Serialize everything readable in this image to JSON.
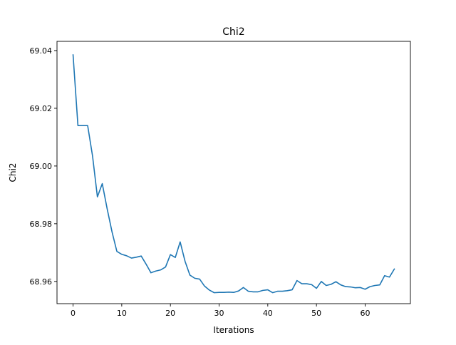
{
  "chart_data": {
    "type": "line",
    "title": "Chi2",
    "xlabel": "Iterations",
    "ylabel": "Chi2",
    "xlim": [
      -3.3,
      69.3
    ],
    "ylim": [
      68.9523,
      69.0432
    ],
    "x_ticks": [
      0,
      10,
      20,
      30,
      40,
      50,
      60
    ],
    "y_ticks": [
      68.96,
      68.98,
      69.0,
      69.02,
      69.04
    ],
    "x_tick_labels": [
      "0",
      "10",
      "20",
      "30",
      "40",
      "50",
      "60"
    ],
    "y_tick_labels": [
      "68.96",
      "68.98",
      "69.00",
      "69.02",
      "69.04"
    ],
    "grid": false,
    "line_color": "#1f77b4",
    "series": [
      {
        "x": [
          0,
          1,
          2,
          3,
          4,
          5,
          6,
          7,
          8,
          9,
          10,
          11,
          12,
          13,
          14,
          15,
          16,
          17,
          18,
          19,
          20,
          21,
          22,
          23,
          24,
          25,
          26,
          27,
          28,
          29,
          30,
          31,
          32,
          33,
          34,
          35,
          36,
          37,
          38,
          39,
          40,
          41,
          42,
          43,
          44,
          45,
          46,
          47,
          48,
          49,
          50,
          51,
          52,
          53,
          54,
          55,
          56,
          57,
          58,
          59,
          60,
          61,
          62,
          63,
          64,
          65,
          66
        ],
        "y": [
          69.0385,
          69.014,
          69.014,
          69.014,
          69.0035,
          68.9893,
          68.9939,
          68.9852,
          68.9772,
          68.9704,
          68.9694,
          68.9689,
          68.9681,
          68.9684,
          68.9688,
          68.966,
          68.963,
          68.9636,
          68.964,
          68.965,
          68.9693,
          68.9683,
          68.9737,
          68.967,
          68.9622,
          68.9611,
          68.9608,
          68.9584,
          68.957,
          68.9561,
          68.9562,
          68.9562,
          68.9563,
          68.9562,
          68.9567,
          68.9579,
          68.9566,
          68.9564,
          68.9564,
          68.9569,
          68.9571,
          68.9561,
          68.9566,
          68.9566,
          68.9568,
          68.9571,
          68.9603,
          68.9592,
          68.9592,
          68.9589,
          68.9576,
          68.96,
          68.9586,
          68.959,
          68.9599,
          68.9588,
          68.9582,
          68.9581,
          68.9578,
          68.9579,
          68.9573,
          68.9582,
          68.9586,
          68.9588,
          68.962,
          68.9615,
          68.9643
        ]
      }
    ]
  }
}
